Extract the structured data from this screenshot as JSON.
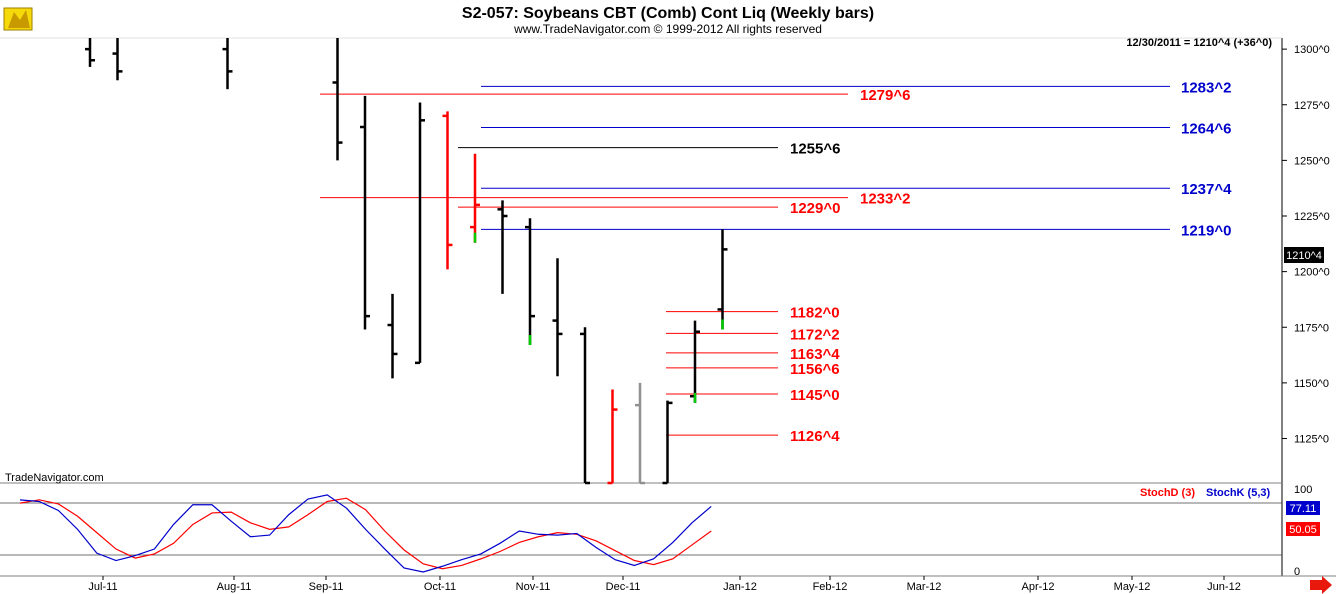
{
  "header": {
    "title": "S2-057:  Soybeans CBT (Comb) Cont Liq  (Weekly bars)",
    "copyright": "www.TradeNavigator.com © 1999-2012 All rights reserved",
    "watermark": "TradeNavigator.com",
    "last_value": "12/30/2011 = 1210^4 (+36^0)"
  },
  "logo": {
    "icon": "trade-navigator-logo-icon"
  },
  "scroll": {
    "icon": "scroll-right-arrow-icon",
    "color": "#e8180c"
  },
  "colors": {
    "up": "#000000",
    "down": "#ff0000",
    "blue_level": "#0000cc",
    "red_level": "#ff0000",
    "stochd": "#ff0000",
    "stochk": "#0000cc"
  },
  "chart_data": {
    "type": "ohlc-bars",
    "price_axis": {
      "ticks": [
        "1125^0",
        "1150^0",
        "1175^0",
        "1200^0",
        "1225^0",
        "1250^0",
        "1275^0",
        "1300^0"
      ],
      "ylim": [
        1105,
        1305
      ],
      "current_label": "1210^4"
    },
    "x_axis": {
      "months": [
        "Jul-11",
        "Aug-11",
        "Sep-11",
        "Oct-11",
        "Nov-11",
        "Dec-11",
        "Jan-12",
        "Feb-12",
        "Mar-12",
        "Apr-12",
        "May-12",
        "Jun-12"
      ]
    },
    "bars": [
      {
        "w": 0,
        "h": 1320,
        "l": 1292,
        "o": 1300,
        "c": 1295,
        "color": "black"
      },
      {
        "w": 1,
        "h": 1320,
        "l": 1286,
        "o": 1298,
        "c": 1290,
        "color": "black"
      },
      {
        "w": 5,
        "h": 1320,
        "l": 1282,
        "o": 1300,
        "c": 1290,
        "color": "black"
      },
      {
        "w": 9,
        "h": 1305,
        "l": 1250,
        "o": 1285,
        "c": 1258,
        "color": "black"
      },
      {
        "w": 10,
        "h": 1279,
        "l": 1174,
        "o": 1265,
        "c": 1180,
        "color": "black"
      },
      {
        "w": 11,
        "h": 1190,
        "l": 1152,
        "o": 1176,
        "c": 1163,
        "color": "black"
      },
      {
        "w": 12,
        "h": 1276,
        "l": 1159,
        "o": 1159,
        "c": 1268,
        "color": "black"
      },
      {
        "w": 13,
        "h": 1272,
        "l": 1201,
        "o": 1270,
        "c": 1212,
        "color": "red"
      },
      {
        "w": 14,
        "h": 1253,
        "l": 1213,
        "o": 1220,
        "c": 1230,
        "color": "red",
        "tip_color": "#00cc00"
      },
      {
        "w": 15,
        "h": 1232,
        "l": 1190,
        "o": 1228,
        "c": 1225,
        "color": "black"
      },
      {
        "w": 16,
        "h": 1224,
        "l": 1167,
        "o": 1220,
        "c": 1180,
        "color": "black",
        "tip_color": "#00cc00"
      },
      {
        "w": 17,
        "h": 1206,
        "l": 1153,
        "o": 1178,
        "c": 1172,
        "color": "black"
      },
      {
        "w": 18,
        "h": 1175,
        "l": 1105,
        "o": 1172,
        "c": 1105,
        "color": "black"
      },
      {
        "w": 19,
        "h": 1147,
        "l": 1105,
        "o": 1105,
        "c": 1138,
        "color": "red"
      },
      {
        "w": 20,
        "h": 1150,
        "l": 1105,
        "o": 1140,
        "c": 1105,
        "color": "gray"
      },
      {
        "w": 21,
        "h": 1142,
        "l": 1105,
        "o": 1105,
        "c": 1141,
        "color": "black"
      },
      {
        "w": 22,
        "h": 1178,
        "l": 1141,
        "o": 1144,
        "c": 1173,
        "color": "black",
        "tip_color": "#00cc00"
      },
      {
        "w": 23,
        "h": 1219,
        "l": 1174,
        "o": 1183,
        "c": 1210,
        "color": "black",
        "tip_color": "#00cc00"
      }
    ],
    "levels": [
      {
        "value": 1283.25,
        "label": "1283^2",
        "color": "#0000cc"
      },
      {
        "value": 1279.75,
        "label": "1279^6",
        "color": "#ff0000"
      },
      {
        "value": 1264.75,
        "label": "1264^6",
        "color": "#0000cc"
      },
      {
        "value": 1255.75,
        "label": "1255^6",
        "color": "#000000"
      },
      {
        "value": 1237.5,
        "label": "1237^4",
        "color": "#0000cc"
      },
      {
        "value": 1233.25,
        "label": "1233^2",
        "color": "#ff0000"
      },
      {
        "value": 1229.0,
        "label": "1229^0",
        "color": "#ff0000"
      },
      {
        "value": 1219.0,
        "label": "1219^0",
        "color": "#0000cc"
      },
      {
        "value": 1182.0,
        "label": "1182^0",
        "color": "#ff0000"
      },
      {
        "value": 1172.25,
        "label": "1172^2",
        "color": "#ff0000"
      },
      {
        "value": 1163.5,
        "label": "1163^4",
        "color": "#ff0000"
      },
      {
        "value": 1156.75,
        "label": "1156^6",
        "color": "#ff0000"
      },
      {
        "value": 1145.0,
        "label": "1145^0",
        "color": "#ff0000"
      },
      {
        "value": 1126.5,
        "label": "1126^4",
        "color": "#ff0000"
      }
    ],
    "stochastic": {
      "top_label": "100",
      "bottom_label": "0",
      "stochd_label": "StochD (3)",
      "stochk_label": "StochK (5,3)",
      "stochk_value": "77.11",
      "stochd_value": "50.05",
      "upper_ref": 80,
      "lower_ref": 20,
      "stochk": [
        [
          0,
          88
        ],
        [
          1,
          86
        ],
        [
          2,
          75
        ],
        [
          3,
          52
        ],
        [
          4,
          23
        ],
        [
          5,
          14
        ],
        [
          6,
          20
        ],
        [
          7,
          28
        ],
        [
          8,
          58
        ],
        [
          9,
          82
        ],
        [
          10,
          82
        ],
        [
          11,
          62
        ],
        [
          12,
          43
        ],
        [
          13,
          45
        ],
        [
          14,
          70
        ],
        [
          15,
          89
        ],
        [
          16,
          94
        ],
        [
          17,
          78
        ],
        [
          18,
          52
        ],
        [
          19,
          28
        ],
        [
          20,
          5
        ],
        [
          21,
          0
        ],
        [
          22,
          7
        ],
        [
          23,
          15
        ],
        [
          24,
          22
        ],
        [
          25,
          35
        ],
        [
          26,
          50
        ],
        [
          27,
          46
        ],
        [
          28,
          45
        ],
        [
          29,
          47
        ],
        [
          30,
          30
        ],
        [
          31,
          15
        ],
        [
          32,
          8
        ],
        [
          33,
          16
        ],
        [
          34,
          36
        ],
        [
          35,
          60
        ],
        [
          36,
          80
        ]
      ],
      "stochd": [
        [
          0,
          84
        ],
        [
          1,
          88
        ],
        [
          2,
          83
        ],
        [
          3,
          68
        ],
        [
          4,
          48
        ],
        [
          5,
          28
        ],
        [
          6,
          17
        ],
        [
          7,
          22
        ],
        [
          8,
          35
        ],
        [
          9,
          58
        ],
        [
          10,
          72
        ],
        [
          11,
          73
        ],
        [
          12,
          60
        ],
        [
          13,
          52
        ],
        [
          14,
          55
        ],
        [
          15,
          70
        ],
        [
          16,
          86
        ],
        [
          17,
          90
        ],
        [
          18,
          76
        ],
        [
          19,
          50
        ],
        [
          20,
          27
        ],
        [
          21,
          10
        ],
        [
          22,
          4
        ],
        [
          23,
          8
        ],
        [
          24,
          16
        ],
        [
          25,
          25
        ],
        [
          26,
          36
        ],
        [
          27,
          43
        ],
        [
          28,
          48
        ],
        [
          29,
          46
        ],
        [
          30,
          38
        ],
        [
          31,
          26
        ],
        [
          32,
          14
        ],
        [
          33,
          9
        ],
        [
          34,
          16
        ],
        [
          35,
          33
        ],
        [
          36,
          50
        ]
      ]
    }
  }
}
